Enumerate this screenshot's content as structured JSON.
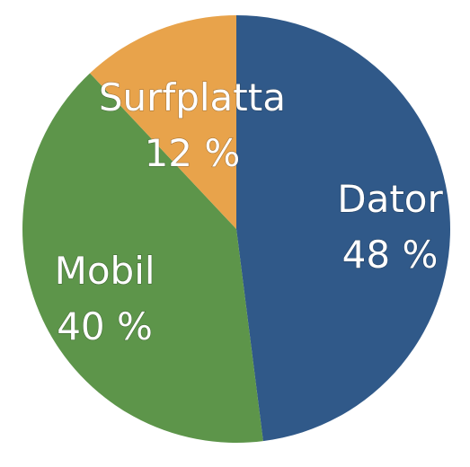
{
  "chart_data": {
    "type": "pie",
    "slices": [
      {
        "name": "Dator",
        "value": 48,
        "label": "48 %",
        "color": "#305989"
      },
      {
        "name": "Mobil",
        "value": 40,
        "label": "40 %",
        "color": "#5d954a"
      },
      {
        "name": "Surfplatta",
        "value": 12,
        "label": "12 %",
        "color": "#e8a34b"
      }
    ],
    "start": "12 o'clock",
    "direction": "clockwise",
    "legend": "none"
  }
}
